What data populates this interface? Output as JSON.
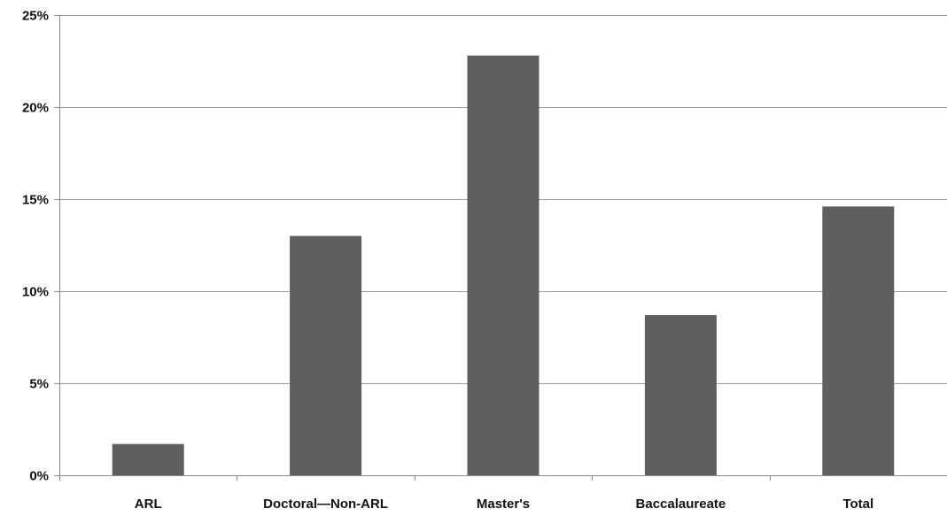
{
  "chart_data": {
    "type": "bar",
    "categories": [
      "ARL",
      "Doctoral—Non-ARL",
      "Master's",
      "Baccalaureate",
      "Total"
    ],
    "series": [
      {
        "values": [
          1.7,
          13.0,
          22.8,
          8.7,
          14.6
        ]
      }
    ],
    "ylim": [
      0,
      25
    ],
    "yticks": [
      0,
      5,
      10,
      15,
      20,
      25
    ],
    "ytick_labels": [
      "0%",
      "5%",
      "10%",
      "15%",
      "20%",
      "25%"
    ],
    "grid": true,
    "legend": "none",
    "colors": {
      "bar": "#5f5f5f",
      "grid": "#999999",
      "axis": "#888888",
      "background": "#ffffff"
    }
  }
}
